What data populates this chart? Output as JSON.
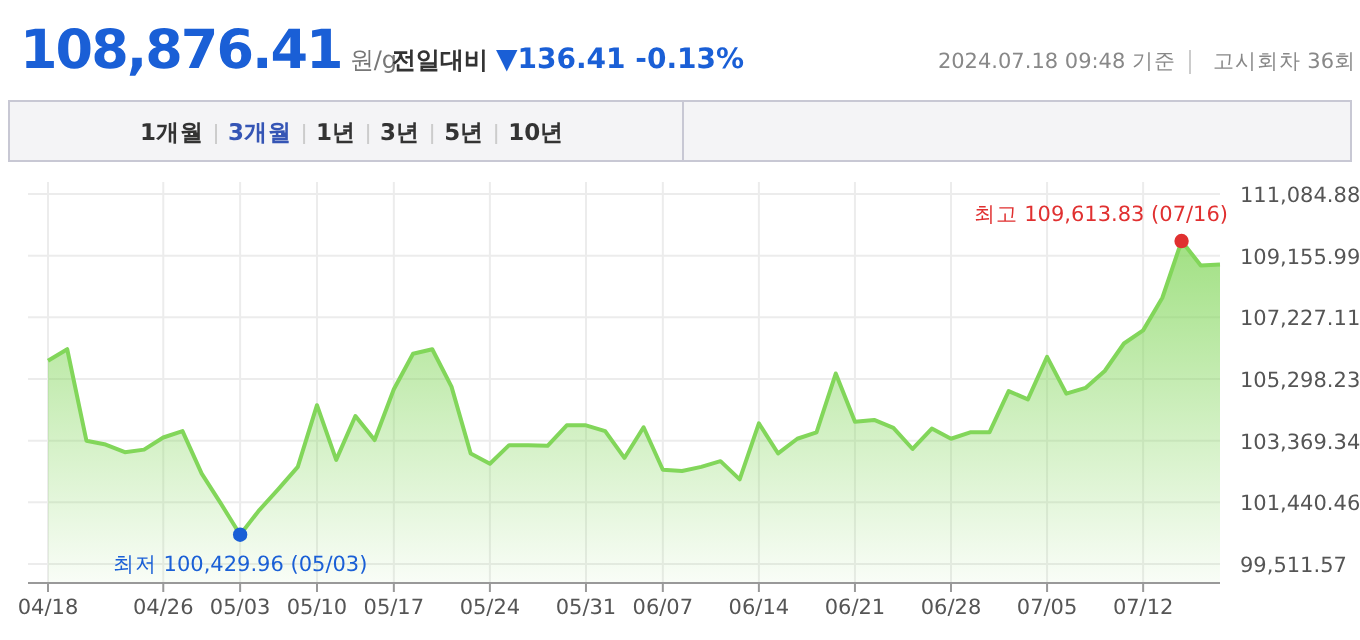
{
  "chart_data": {
    "type": "area",
    "title": "108,876.41원/g",
    "subtitle": "전일대비 ▼136.41 -0.13%",
    "categories": [
      "04/18",
      null,
      null,
      null,
      null,
      null,
      "04/26",
      null,
      null,
      null,
      "05/03",
      null,
      null,
      null,
      "05/10",
      null,
      null,
      null,
      "05/17",
      null,
      null,
      null,
      null,
      "05/24",
      null,
      null,
      null,
      null,
      "05/31",
      null,
      null,
      null,
      "06/07",
      null,
      null,
      null,
      null,
      "06/14",
      null,
      null,
      null,
      null,
      "06/21",
      null,
      null,
      null,
      null,
      "06/28",
      null,
      null,
      null,
      null,
      "07/05",
      null,
      null,
      null,
      null,
      "07/12",
      null,
      null,
      null,
      null
    ],
    "series": [
      {
        "color": "#82d65a",
        "values": [
          105870,
          106230,
          103370,
          103250,
          103010,
          103090,
          103470,
          103670,
          102340,
          101400,
          100429.96,
          101200,
          101860,
          102550,
          104480,
          102770,
          104140,
          103390,
          104980,
          106090,
          106230,
          105060,
          102970,
          102650,
          103230,
          103230,
          103210,
          103850,
          103850,
          103670,
          102830,
          103790,
          102460,
          102420,
          102550,
          102730,
          102160,
          103910,
          102970,
          103430,
          103630,
          105470,
          103960,
          104020,
          103770,
          103110,
          103750,
          103430,
          103630,
          103630,
          104920,
          104660,
          105990,
          104840,
          105020,
          105550,
          106410,
          106820,
          107840,
          109613.83,
          108850,
          108880
        ]
      }
    ],
    "ylim": [
      98950,
      111084.88
    ],
    "yticks": [
      {
        "value": 99511.57,
        "label": "99,511.57"
      },
      {
        "value": 101440.46,
        "label": "101,440.46"
      },
      {
        "value": 103369.34,
        "label": "103,369.34"
      },
      {
        "value": 105298.23,
        "label": "105,298.23"
      },
      {
        "value": 107227.11,
        "label": "107,227.11"
      },
      {
        "value": 109155.99,
        "label": "109,155.99"
      },
      {
        "value": 111084.88,
        "label": "111,084.88"
      }
    ],
    "grid": true,
    "annotations": [
      "2024.07.18 09:48 기준",
      "고시회차 36회",
      "1개월",
      "3개월",
      "1년",
      "3년",
      "5년",
      "10년",
      "최고 109,613.83 (07/16)",
      "최저 100,429.96 (05/03)"
    ]
  }
}
